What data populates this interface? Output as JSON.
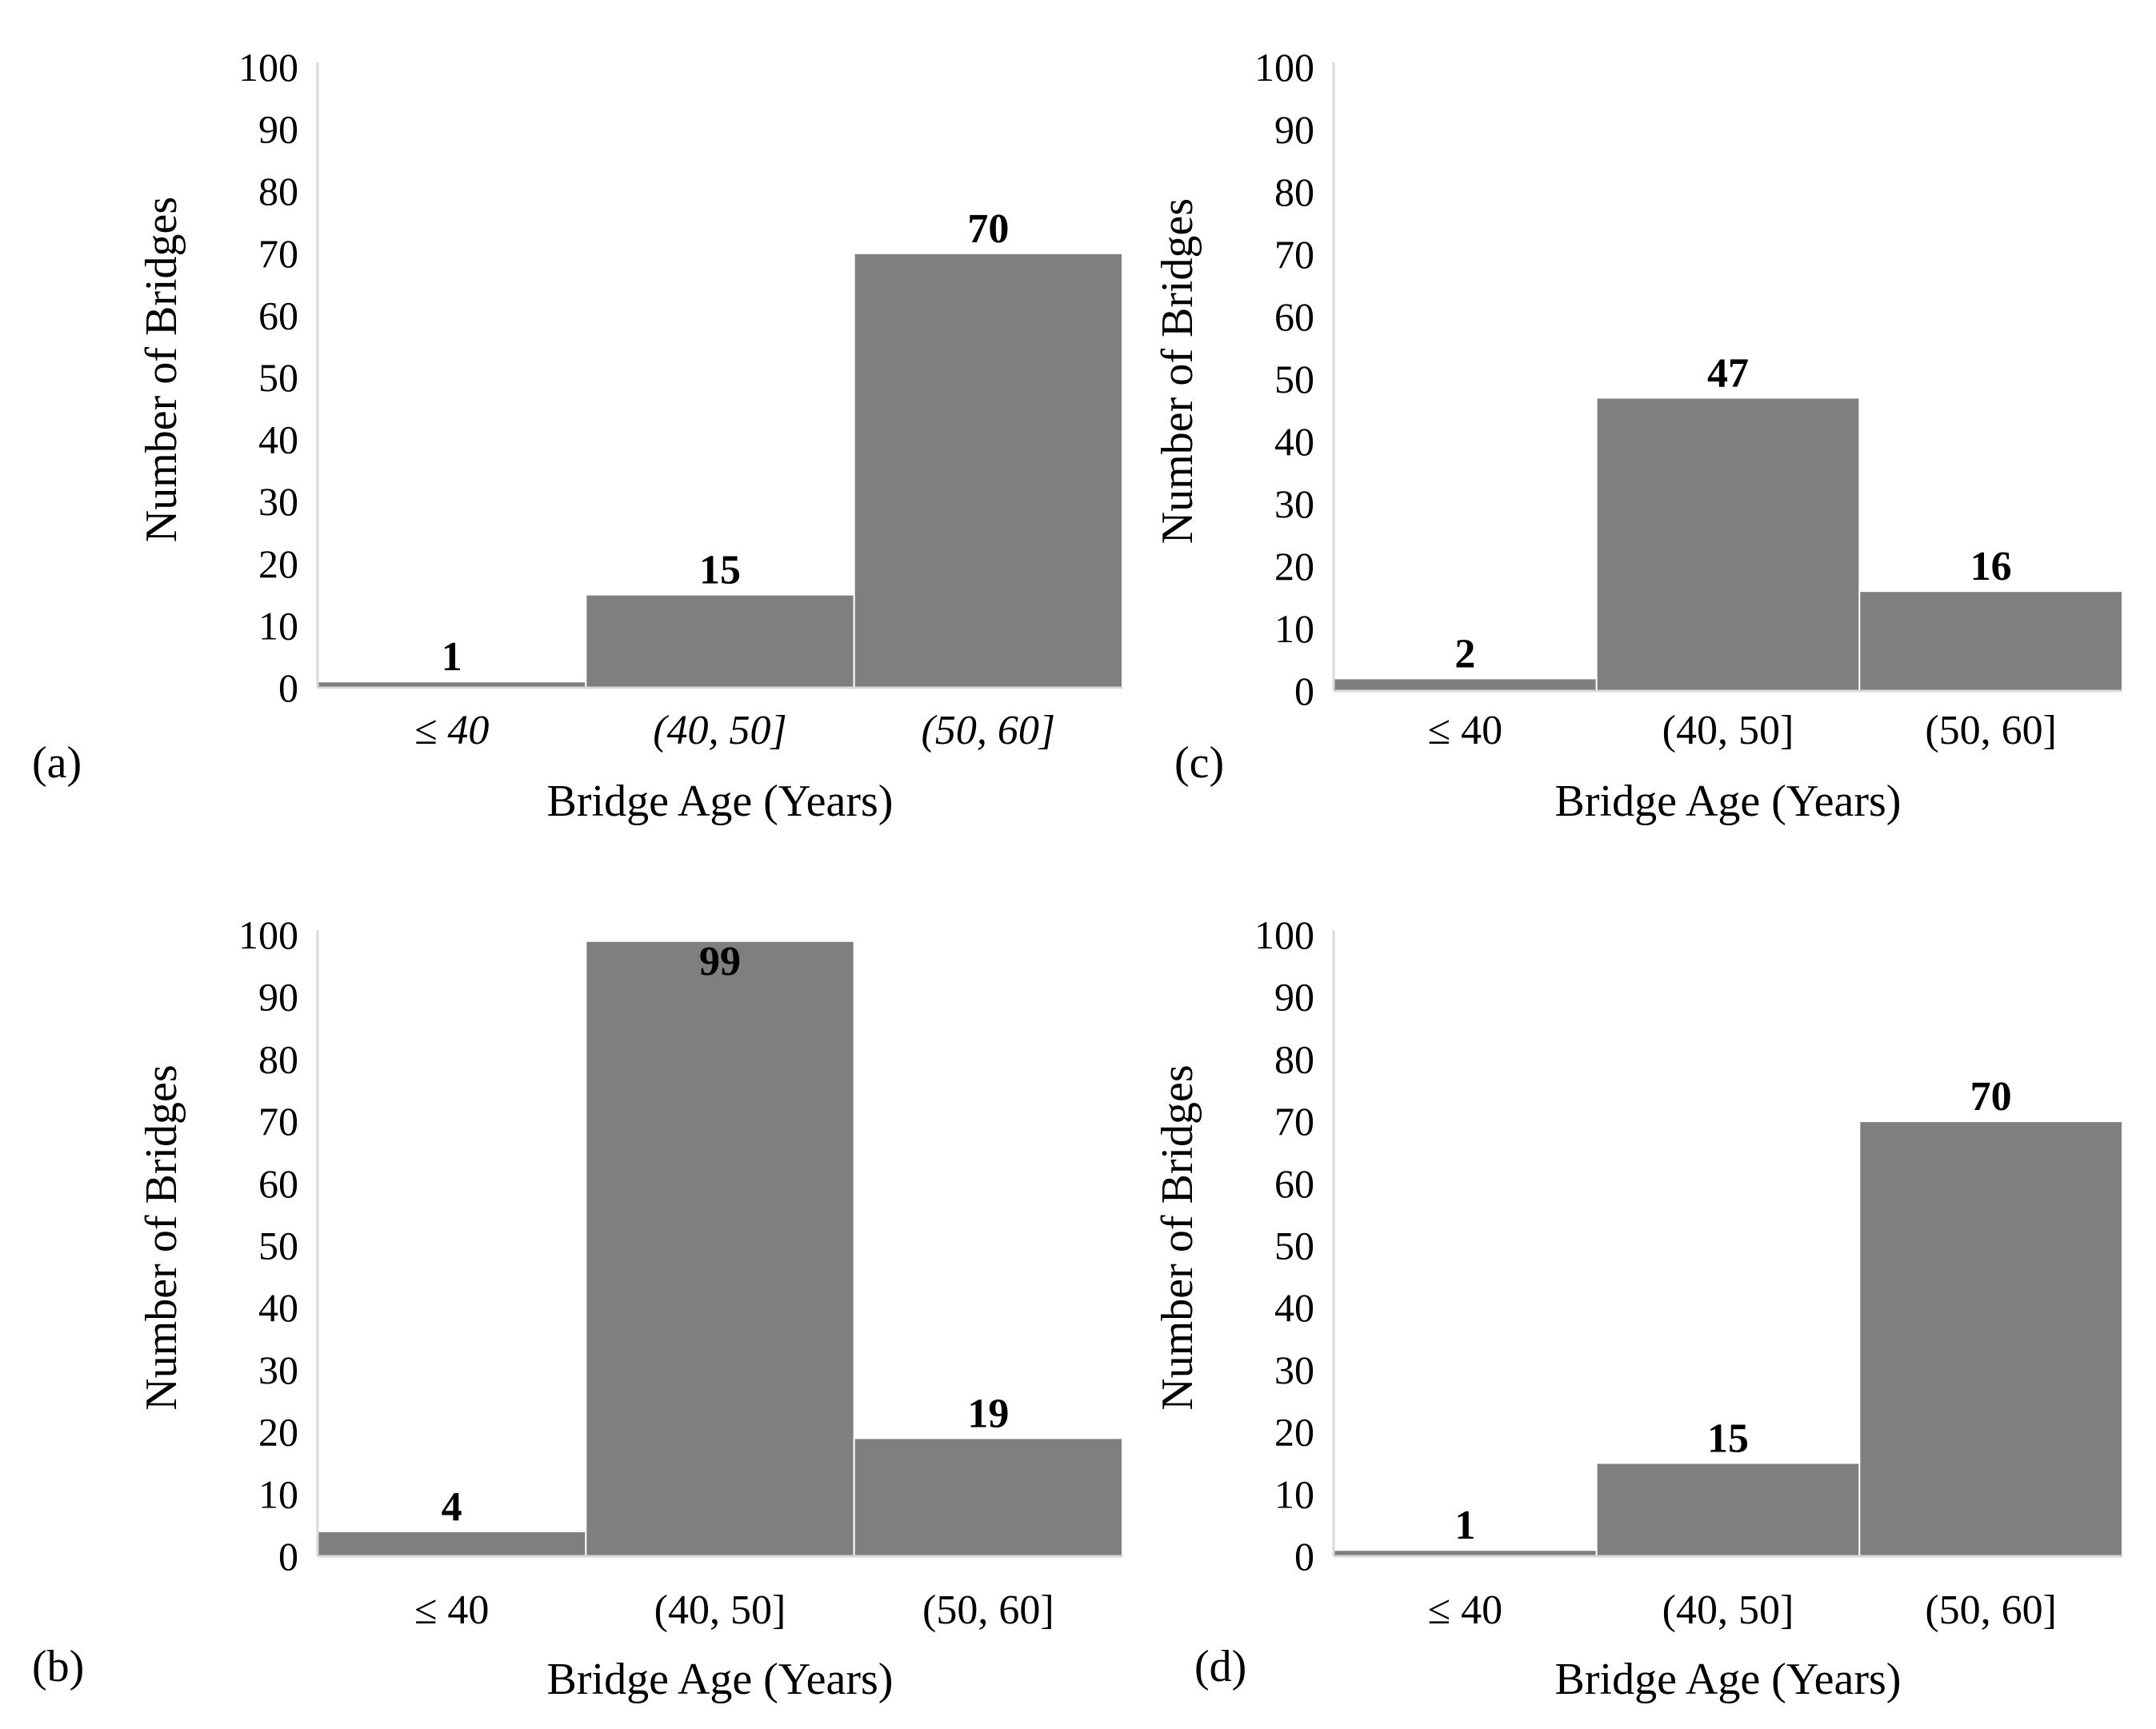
{
  "figure_colors": {
    "bar": "#7f7f7f",
    "axis": "#d9d9d9",
    "text": "#000000",
    "background": "#ffffff"
  },
  "chart_data": [
    {
      "panel": "(a)",
      "type": "bar",
      "categories": [
        "≤ 40",
        "(40, 50]",
        "(50, 60]"
      ],
      "values": [
        1,
        15,
        70
      ],
      "value_labels": [
        "1",
        "15",
        "70"
      ],
      "yticks": [
        "0",
        "10",
        "20",
        "30",
        "40",
        "50",
        "60",
        "70",
        "80",
        "90",
        "100"
      ],
      "xlabel": "Bridge Age (Years)",
      "ylabel": "Number of Bridges",
      "ylim": [
        0,
        100
      ],
      "category_style": "italic",
      "grid": false
    },
    {
      "panel": "(c)",
      "type": "bar",
      "categories": [
        "≤ 40",
        "(40, 50]",
        "(50, 60]"
      ],
      "values": [
        2,
        47,
        16
      ],
      "value_labels": [
        "2",
        "47",
        "16"
      ],
      "yticks": [
        "0",
        "10",
        "20",
        "30",
        "40",
        "50",
        "60",
        "70",
        "80",
        "90",
        "100"
      ],
      "xlabel": "Bridge Age (Years)",
      "ylabel": "Number of Bridges",
      "ylim": [
        0,
        100
      ],
      "category_style": "normal",
      "grid": false
    },
    {
      "panel": "(b)",
      "type": "bar",
      "categories": [
        "≤ 40",
        "(40, 50]",
        "(50, 60]"
      ],
      "values": [
        4,
        99,
        19
      ],
      "value_labels": [
        "4",
        "99",
        "19"
      ],
      "yticks": [
        "0",
        "10",
        "20",
        "30",
        "40",
        "50",
        "60",
        "70",
        "80",
        "90",
        "100"
      ],
      "xlabel": "Bridge Age (Years)",
      "ylabel": "Number of Bridges",
      "ylim": [
        0,
        100
      ],
      "category_style": "normal",
      "grid": false
    },
    {
      "panel": "(d)",
      "type": "bar",
      "categories": [
        "≤ 40",
        "(40, 50]",
        "(50, 60]"
      ],
      "values": [
        1,
        15,
        70
      ],
      "value_labels": [
        "1",
        "15",
        "70"
      ],
      "yticks": [
        "0",
        "10",
        "20",
        "30",
        "40",
        "50",
        "60",
        "70",
        "80",
        "90",
        "100"
      ],
      "xlabel": "Bridge Age (Years)",
      "ylabel": "Number of Bridges",
      "ylim": [
        0,
        100
      ],
      "category_style": "normal",
      "grid": false
    }
  ]
}
